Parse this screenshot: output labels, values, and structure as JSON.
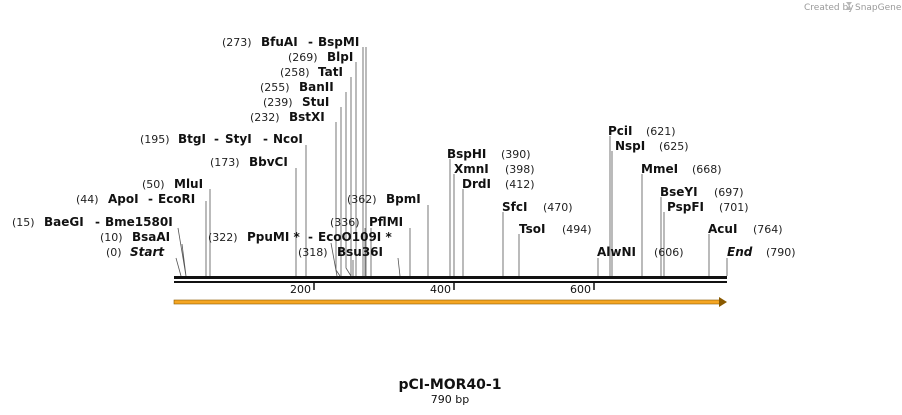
{
  "credit": "Created by",
  "brand": "SnapGene",
  "title": "pCI-MOR40-1",
  "length_label": "790 bp",
  "seq_length": 790,
  "ticks": [
    {
      "value": 200,
      "label": "200"
    },
    {
      "value": 400,
      "label": "400"
    },
    {
      "value": 600,
      "label": "600"
    }
  ],
  "feature": {
    "name": "orange-feature-arrow",
    "start": 1,
    "end": 790,
    "color": "#f5a623"
  },
  "sites": [
    {
      "id": "start",
      "pos": "(0)",
      "name": "Start",
      "italic": true,
      "bp": 0
    },
    {
      "id": "bsaai",
      "pos": "(10)",
      "name": "BsaAI",
      "bp": 10
    },
    {
      "id": "baegi",
      "pos": "(15)",
      "name": "BaeGI",
      "name2": "Bme1580I",
      "bp": 15
    },
    {
      "id": "apoi",
      "pos": "(44)",
      "name": "ApoI",
      "name2": "EcoRI",
      "bp": 44
    },
    {
      "id": "mlui",
      "pos": "(50)",
      "name": "MluI",
      "bp": 50
    },
    {
      "id": "bbvci",
      "pos": "(173)",
      "name": "BbvCI",
      "bp": 173
    },
    {
      "id": "btgi",
      "pos": "(195)",
      "name": "BtgI",
      "name2": "StyI",
      "name3": "NcoI",
      "bp": 195
    },
    {
      "id": "bstxi",
      "pos": "(232)",
      "name": "BstXI",
      "bp": 232
    },
    {
      "id": "stui",
      "pos": "(239)",
      "name": "StuI",
      "bp": 239
    },
    {
      "id": "banii",
      "pos": "(255)",
      "name": "BanII",
      "bp": 255
    },
    {
      "id": "tati",
      "pos": "(258)",
      "name": "TatI",
      "bp": 258
    },
    {
      "id": "blpi",
      "pos": "(269)",
      "name": "BlpI",
      "bp": 269
    },
    {
      "id": "bfuai",
      "pos": "(273)",
      "name": "BfuAI",
      "name2": "BspMI",
      "bp": 273
    },
    {
      "id": "bsu36i",
      "pos": "(318)",
      "name": "Bsu36I",
      "bp": 318
    },
    {
      "id": "ppumi",
      "pos": "(322)",
      "name": "PpuMI *",
      "name2": "EcoO109I *",
      "bp": 322
    },
    {
      "id": "pflmi",
      "pos": "(336)",
      "name": "PflMI",
      "bp": 336
    },
    {
      "id": "bpmi",
      "pos": "(362)",
      "name": "BpmI",
      "bp": 362
    },
    {
      "id": "bsphi",
      "pos": "(390)",
      "name": "BspHI",
      "bp": 390
    },
    {
      "id": "xmni",
      "pos": "(398)",
      "name": "XmnI",
      "bp": 398
    },
    {
      "id": "drdi",
      "pos": "(412)",
      "name": "DrdI",
      "bp": 412
    },
    {
      "id": "sfci",
      "pos": "(470)",
      "name": "SfcI",
      "bp": 470
    },
    {
      "id": "tsoi",
      "pos": "(494)",
      "name": "TsoI",
      "bp": 494
    },
    {
      "id": "alwni",
      "pos": "(606)",
      "name": "AlwNI",
      "bp": 606
    },
    {
      "id": "pcii",
      "pos": "(621)",
      "name": "PciI",
      "bp": 621
    },
    {
      "id": "nspi",
      "pos": "(625)",
      "name": "NspI",
      "bp": 625
    },
    {
      "id": "mmei",
      "pos": "(668)",
      "name": "MmeI",
      "bp": 668
    },
    {
      "id": "bseyi",
      "pos": "(697)",
      "name": "BseYI",
      "bp": 697
    },
    {
      "id": "pspfi",
      "pos": "(701)",
      "name": "PspFI",
      "bp": 701
    },
    {
      "id": "acui",
      "pos": "(764)",
      "name": "AcuI",
      "bp": 764
    },
    {
      "id": "end",
      "pos": "(790)",
      "name": "End",
      "italic": true,
      "bp": 790
    }
  ]
}
